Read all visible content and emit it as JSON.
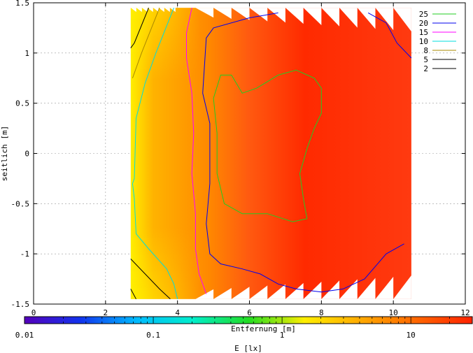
{
  "chart_data": {
    "type": "heatmap",
    "title": "",
    "xlabel": "Entfernung [m]",
    "ylabel": "seitlich [m]",
    "xlim": [
      0,
      12
    ],
    "ylim": [
      -1.5,
      1.5
    ],
    "xticks": [
      "0",
      "2",
      "4",
      "6",
      "8",
      "10",
      "12"
    ],
    "yticks": [
      "1.5",
      "1",
      "0.5",
      "0",
      "-0.5",
      "-1",
      "-1.5"
    ],
    "grid": true,
    "legend_position": "top-right",
    "data_extent": {
      "x": [
        2.7,
        10.5
      ],
      "y": [
        -1.45,
        1.45
      ]
    },
    "contours": [
      {
        "level": "25",
        "color": "#22cc22",
        "points": [
          [
            5.1,
            0.2
          ],
          [
            5.0,
            0.55
          ],
          [
            5.2,
            0.78
          ],
          [
            5.5,
            0.78
          ],
          [
            5.8,
            0.6
          ],
          [
            6.2,
            0.65
          ],
          [
            6.8,
            0.78
          ],
          [
            7.3,
            0.83
          ],
          [
            7.8,
            0.75
          ],
          [
            8.0,
            0.65
          ],
          [
            8.0,
            0.4
          ],
          [
            7.8,
            0.25
          ],
          [
            7.6,
            0.05
          ],
          [
            7.4,
            -0.2
          ],
          [
            7.5,
            -0.45
          ],
          [
            7.6,
            -0.65
          ],
          [
            7.2,
            -0.68
          ],
          [
            6.5,
            -0.6
          ],
          [
            5.8,
            -0.6
          ],
          [
            5.3,
            -0.5
          ],
          [
            5.1,
            -0.2
          ],
          [
            5.1,
            0.2
          ]
        ]
      },
      {
        "level": "20",
        "color": "#0000ee",
        "points": [
          [
            6.8,
            1.4
          ],
          [
            6.0,
            1.35
          ],
          [
            5.0,
            1.25
          ],
          [
            4.8,
            1.15
          ],
          [
            4.7,
            0.6
          ],
          [
            4.9,
            0.3
          ],
          [
            4.9,
            -0.3
          ],
          [
            4.8,
            -0.7
          ],
          [
            4.9,
            -1.0
          ],
          [
            5.2,
            -1.1
          ],
          [
            5.8,
            -1.15
          ],
          [
            6.3,
            -1.2
          ],
          [
            6.8,
            -1.3
          ],
          [
            7.3,
            -1.35
          ],
          [
            8.0,
            -1.38
          ],
          [
            8.6,
            -1.35
          ],
          [
            9.2,
            -1.25
          ],
          [
            9.8,
            -1.0
          ],
          [
            10.3,
            -0.9
          ]
        ]
      },
      {
        "level": "20b",
        "color": "#0000ee",
        "points": [
          [
            9.3,
            1.4
          ],
          [
            9.8,
            1.3
          ],
          [
            10.1,
            1.1
          ],
          [
            10.5,
            0.95
          ]
        ]
      },
      {
        "level": "15",
        "color": "#ff00ff",
        "points": [
          [
            4.4,
            1.45
          ],
          [
            4.25,
            1.2
          ],
          [
            4.25,
            0.95
          ],
          [
            4.4,
            0.6
          ],
          [
            4.45,
            0.2
          ],
          [
            4.4,
            -0.2
          ],
          [
            4.5,
            -0.6
          ],
          [
            4.5,
            -0.95
          ],
          [
            4.6,
            -1.2
          ],
          [
            4.8,
            -1.4
          ]
        ]
      },
      {
        "level": "10",
        "color": "#00dddd",
        "points": [
          [
            3.9,
            1.45
          ],
          [
            3.4,
            1.0
          ],
          [
            3.1,
            0.7
          ],
          [
            2.85,
            0.35
          ],
          [
            2.8,
            -0.25
          ],
          [
            2.75,
            -0.3
          ],
          [
            2.8,
            -0.45
          ],
          [
            2.85,
            -0.8
          ],
          [
            3.2,
            -0.95
          ],
          [
            3.7,
            -1.15
          ],
          [
            3.9,
            -1.3
          ],
          [
            4.0,
            -1.45
          ]
        ]
      },
      {
        "level": "8",
        "color": "#aa8800",
        "points": [
          [
            3.5,
            1.45
          ],
          [
            3.0,
            1.0
          ],
          [
            2.75,
            0.75
          ]
        ]
      },
      {
        "level": "5",
        "color": "#000000",
        "points": [
          [
            3.2,
            1.45
          ],
          [
            2.8,
            1.1
          ],
          [
            2.7,
            1.05
          ]
        ]
      },
      {
        "level": "5b",
        "color": "#000000",
        "points": [
          [
            2.7,
            -1.05
          ],
          [
            3.1,
            -1.2
          ],
          [
            3.5,
            -1.35
          ],
          [
            3.8,
            -1.45
          ]
        ]
      },
      {
        "level": "2",
        "color": "#000000",
        "points": [
          [
            2.7,
            -1.35
          ],
          [
            2.85,
            -1.45
          ]
        ]
      }
    ],
    "legend": [
      {
        "label": "25",
        "color": "#22cc22"
      },
      {
        "label": "20",
        "color": "#0000ee"
      },
      {
        "label": "15",
        "color": "#ff00ff"
      },
      {
        "label": "10",
        "color": "#00dddd"
      },
      {
        "label": "8",
        "color": "#aa8800"
      },
      {
        "label": "5",
        "color": "#000000"
      },
      {
        "label": "2",
        "color": "#000000"
      }
    ],
    "colorbar": {
      "label": "E [lx]",
      "scale": "log",
      "range": [
        0.01,
        30
      ],
      "ticks": [
        "0.01",
        "0.1",
        "1",
        "10"
      ],
      "colors": [
        "#5500bb",
        "#1133ee",
        "#00bbff",
        "#00eecc",
        "#22dd22",
        "#ffee00",
        "#ffaa00",
        "#ff6600",
        "#ff2200"
      ]
    }
  }
}
